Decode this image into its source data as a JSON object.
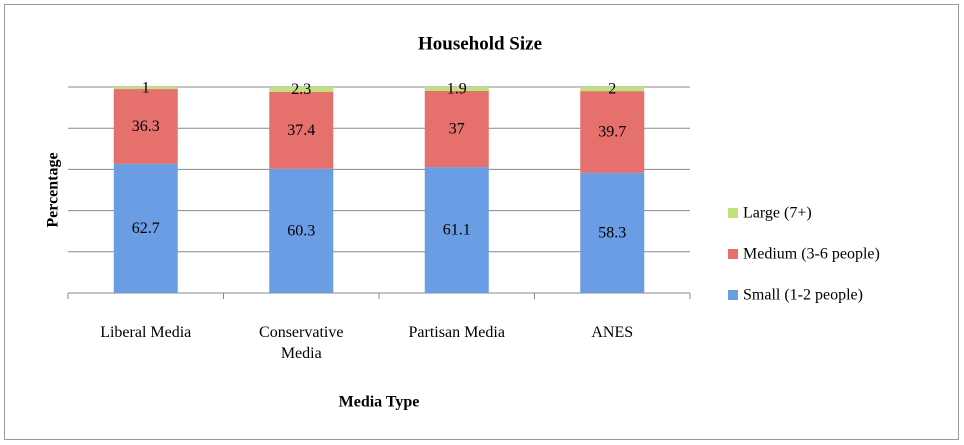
{
  "chart_data": {
    "type": "stacked_bar",
    "title": "Household Size",
    "x_label": "Media Type",
    "y_label": "Percentage",
    "categories": [
      "Liberal Media",
      "Conservative Media",
      "Partisan Media",
      "ANES"
    ],
    "series": [
      {
        "name": "Small (1-2 people)",
        "color": "#6a9de4",
        "values": [
          62.7,
          60.3,
          61.1,
          58.3
        ]
      },
      {
        "name": "Medium (3-6 people)",
        "color": "#e6706c",
        "values": [
          36.3,
          37.4,
          37,
          39.7
        ]
      },
      {
        "name": "Large (7+)",
        "color": "#bfe27a",
        "values": [
          1,
          2.3,
          1.9,
          2
        ]
      }
    ],
    "ylim": [
      0,
      100
    ],
    "yticks": [
      0,
      20,
      40,
      60,
      80,
      100
    ],
    "grid": true,
    "legend": "right"
  }
}
